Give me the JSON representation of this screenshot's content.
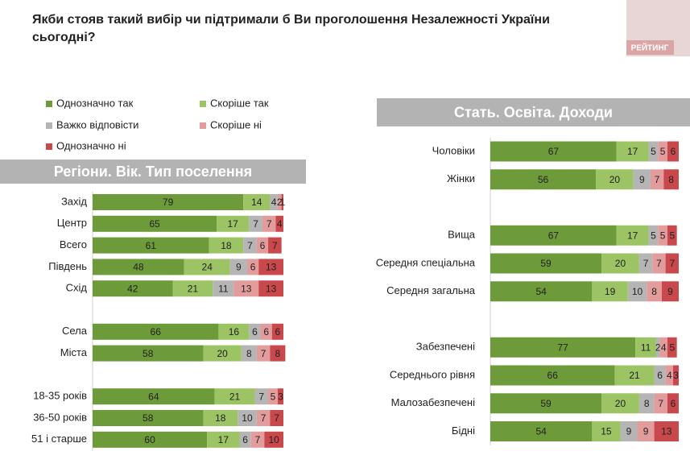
{
  "title": "Якби стояв такий вибір чи підтримали б Ви проголошення Незалежності України сьогодні?",
  "logo": "РЕЙТИНГ",
  "chart_data": [
    {
      "type": "stacked-bar",
      "orientation": "horizontal",
      "title": "Регіони. Вік. Тип поселення",
      "xlim": [
        0,
        100
      ],
      "categories": [
        "Захід",
        "Центр",
        "Всего",
        "Південь",
        "Схід",
        null,
        "Села",
        "Міста",
        null,
        "18-35 років",
        "36-50 років",
        "51 і старше"
      ],
      "series": [
        {
          "name": "Однозначно так",
          "color": "#6e9b3a",
          "values": [
            79,
            65,
            61,
            48,
            42,
            null,
            66,
            58,
            null,
            64,
            58,
            60
          ]
        },
        {
          "name": "Скоріше так",
          "color": "#9cc464",
          "values": [
            14,
            17,
            18,
            24,
            21,
            null,
            16,
            20,
            null,
            21,
            18,
            17
          ]
        },
        {
          "name": "Важко відповісти",
          "color": "#b5b5b5",
          "values": [
            4,
            7,
            7,
            9,
            11,
            null,
            6,
            8,
            null,
            7,
            10,
            6
          ]
        },
        {
          "name": "Скоріше ні",
          "color": "#e39c9c",
          "values": [
            2,
            7,
            6,
            6,
            13,
            null,
            6,
            7,
            null,
            5,
            7,
            7
          ]
        },
        {
          "name": "Однозначно ні",
          "color": "#c8484c",
          "values": [
            1,
            4,
            7,
            13,
            13,
            null,
            6,
            8,
            null,
            3,
            7,
            10
          ]
        }
      ]
    },
    {
      "type": "stacked-bar",
      "orientation": "horizontal",
      "title": "Стать. Освіта. Доходи",
      "xlim": [
        0,
        100
      ],
      "categories": [
        "Чоловіки",
        "Жінки",
        null,
        "Вища",
        "Середня спеціальна",
        "Середня загальна",
        null,
        "Забезпечені",
        "Середнього рівня",
        "Малозабезпечені",
        "Бідні"
      ],
      "series": [
        {
          "color": "#6e9b3a",
          "values": [
            67,
            56,
            null,
            67,
            59,
            54,
            null,
            77,
            66,
            59,
            54
          ]
        },
        {
          "color": "#9cc464",
          "values": [
            17,
            20,
            null,
            17,
            20,
            19,
            null,
            11,
            21,
            20,
            15
          ]
        },
        {
          "color": "#b5b5b5",
          "values": [
            5,
            9,
            null,
            5,
            7,
            10,
            null,
            2,
            6,
            8,
            9
          ]
        },
        {
          "color": "#e39c9c",
          "values": [
            5,
            7,
            null,
            5,
            7,
            8,
            null,
            4,
            4,
            7,
            9
          ]
        },
        {
          "color": "#c8484c",
          "values": [
            6,
            8,
            null,
            5,
            7,
            9,
            null,
            5,
            3,
            6,
            13
          ]
        }
      ]
    }
  ]
}
